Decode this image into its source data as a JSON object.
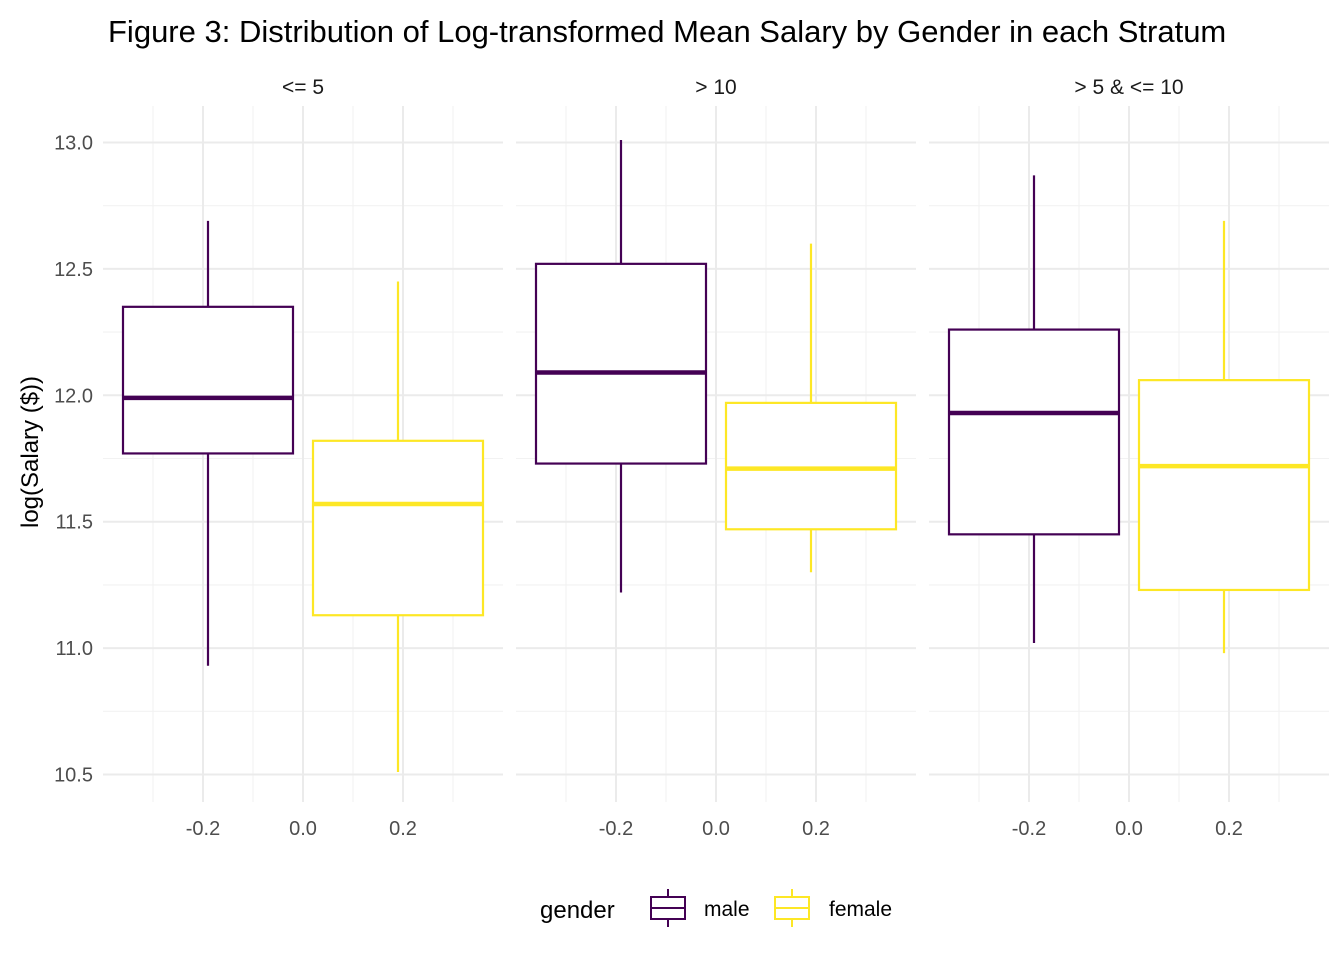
{
  "chart_data": {
    "type": "box",
    "title": "Figure 3: Distribution of Log-transformed Mean Salary by Gender in each Stratum",
    "ylabel": "log(Salary ($))",
    "xlabel": "",
    "ylim": [
      10.45,
      13.1
    ],
    "xlim": [
      -0.4,
      0.4
    ],
    "yticks": [
      "10.5",
      "11.0",
      "11.5",
      "12.0",
      "12.5",
      "13.0"
    ],
    "xticks": [
      "-0.2",
      "0.0",
      "0.2"
    ],
    "grid": true,
    "legend": {
      "title": "gender",
      "position": "bottom",
      "items": [
        {
          "label": "male",
          "color": "#440154"
        },
        {
          "label": "female",
          "color": "#FDE725"
        }
      ]
    },
    "panels": [
      {
        "strip": "<= 5",
        "boxes": [
          {
            "group": "male",
            "x": -0.19,
            "min": 10.93,
            "q1": 11.77,
            "median": 11.99,
            "q3": 12.35,
            "max": 12.69
          },
          {
            "group": "female",
            "x": 0.19,
            "min": 10.51,
            "q1": 11.13,
            "median": 11.57,
            "q3": 11.82,
            "max": 12.45
          }
        ]
      },
      {
        "strip": "> 10",
        "boxes": [
          {
            "group": "male",
            "x": -0.19,
            "min": 11.22,
            "q1": 11.73,
            "median": 12.09,
            "q3": 12.52,
            "max": 13.01
          },
          {
            "group": "female",
            "x": 0.19,
            "min": 11.3,
            "q1": 11.47,
            "median": 11.71,
            "q3": 11.97,
            "max": 12.6
          }
        ]
      },
      {
        "strip": "> 5 & <= 10",
        "boxes": [
          {
            "group": "male",
            "x": -0.19,
            "min": 11.02,
            "q1": 11.45,
            "median": 11.93,
            "q3": 12.26,
            "max": 12.87
          },
          {
            "group": "female",
            "x": 0.19,
            "min": 10.98,
            "q1": 11.23,
            "median": 11.72,
            "q3": 12.06,
            "max": 12.69
          }
        ]
      }
    ]
  }
}
